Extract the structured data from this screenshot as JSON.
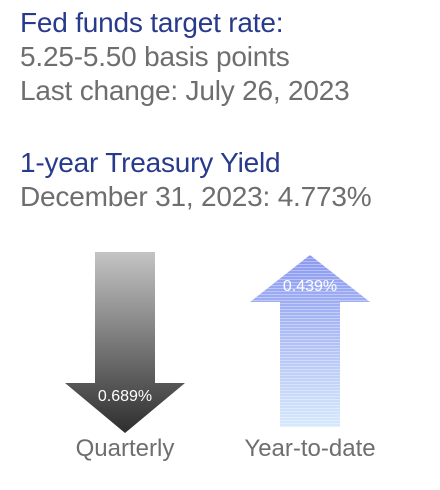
{
  "fed_funds": {
    "heading": "Fed funds target rate:",
    "range": "5.25-5.50 basis points",
    "last_change": "Last change: July 26, 2023"
  },
  "treasury": {
    "heading": "1-year Treasury Yield",
    "value_line": "December 31, 2023: 4.773%"
  },
  "arrows": {
    "quarterly": {
      "direction": "down",
      "value": "0.689%",
      "caption": "Quarterly",
      "colors": {
        "top": "#c4c4c4",
        "bottom": "#2e2e2e"
      }
    },
    "ytd": {
      "direction": "up",
      "value": "0.439%",
      "caption": "Year-to-date",
      "colors": {
        "top": "#8a98f0",
        "bottom": "#d6e8fc"
      }
    }
  },
  "colors": {
    "heading": "#283a8c",
    "body_text": "#6e6e6e"
  }
}
